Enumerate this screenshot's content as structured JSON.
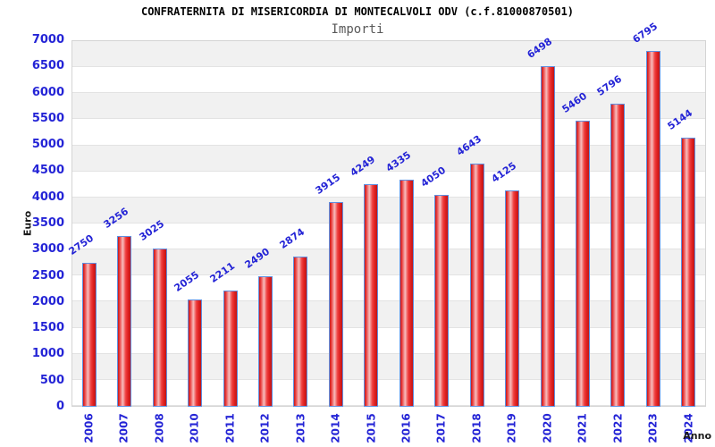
{
  "chart_data": {
    "type": "bar",
    "title": "CONFRATERNITA DI MISERICORDIA DI MONTECALVOLI ODV (c.f.81000870501)",
    "subtitle": "Importi",
    "xlabel": "Anno",
    "ylabel": "Euro",
    "categories": [
      "2006",
      "2007",
      "2008",
      "2010",
      "2011",
      "2012",
      "2013",
      "2014",
      "2015",
      "2016",
      "2017",
      "2018",
      "2019",
      "2020",
      "2021",
      "2022",
      "2023",
      "2024"
    ],
    "values": [
      2750,
      3256,
      3025,
      2055,
      2211,
      2490,
      2874,
      3915,
      4249,
      4335,
      4050,
      4643,
      4125,
      6498,
      5460,
      5796,
      6795,
      5144
    ],
    "ylim": [
      0,
      7000
    ],
    "ytick_step": 500,
    "yticks": [
      7000,
      6500,
      6000,
      5500,
      5000,
      4500,
      4000,
      3500,
      3000,
      2500,
      2000,
      1500,
      1000,
      500,
      0
    ],
    "grid": "horizontal-alternating-bands",
    "legend": "none",
    "value_labels": "rotated above bars",
    "xtick_labels": "rotated vertical",
    "colors": {
      "bar_fill": "#e02222",
      "bar_highlight": "#f7bdbd",
      "bar_border": "#5f8fe0",
      "value_label": "#2424d6",
      "axis_tick_label": "#2424d6",
      "band_gray": "#f1f1f1",
      "band_white": "#ffffff",
      "grid_line": "#e3e3e3",
      "plot_border": "#d4d4d4",
      "title": "#000000",
      "subtitle": "#595959",
      "axis_title": "#1a1a1a"
    }
  }
}
